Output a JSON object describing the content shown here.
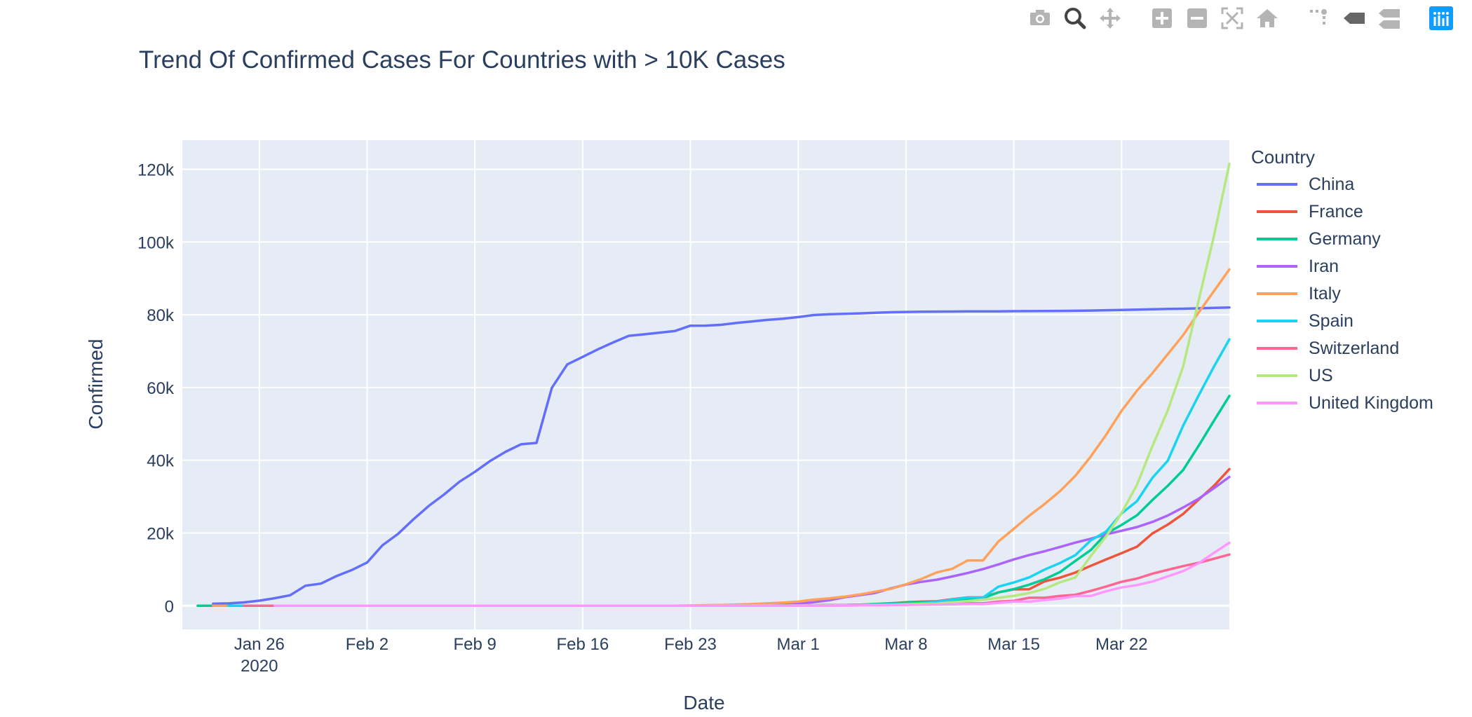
{
  "modebar": {
    "icons": [
      "camera-icon",
      "zoom-icon",
      "pan-icon",
      "zoom-in-icon",
      "zoom-out-icon",
      "autoscale-icon",
      "reset-axes-icon",
      "spike-lines-icon",
      "hover-closest-icon",
      "hover-compare-icon",
      "plotly-logo-icon"
    ]
  },
  "chart_data": {
    "type": "line",
    "title": "Trend Of Confirmed Cases For Countries with > 10K Cases",
    "xlabel": "Date",
    "ylabel": "Confirmed",
    "legend_title": "Country",
    "legend_position": "top-right",
    "grid": true,
    "x_start": "2020-01-22",
    "xlim": [
      "2020-01-21",
      "2020-03-29"
    ],
    "ylim": [
      -6500,
      128000
    ],
    "x_ticks": [
      {
        "date": "2020-01-26",
        "label": "Jan 26",
        "sublabel": "2020"
      },
      {
        "date": "2020-02-02",
        "label": "Feb 2"
      },
      {
        "date": "2020-02-09",
        "label": "Feb 9"
      },
      {
        "date": "2020-02-16",
        "label": "Feb 16"
      },
      {
        "date": "2020-02-23",
        "label": "Feb 23"
      },
      {
        "date": "2020-03-01",
        "label": "Mar 1"
      },
      {
        "date": "2020-03-08",
        "label": "Mar 8"
      },
      {
        "date": "2020-03-15",
        "label": "Mar 15"
      },
      {
        "date": "2020-03-22",
        "label": "Mar 22"
      }
    ],
    "y_ticks": [
      {
        "value": 0,
        "label": "0"
      },
      {
        "value": 20000,
        "label": "20k"
      },
      {
        "value": 40000,
        "label": "40k"
      },
      {
        "value": 60000,
        "label": "60k"
      },
      {
        "value": 80000,
        "label": "80k"
      },
      {
        "value": 100000,
        "label": "100k"
      },
      {
        "value": 120000,
        "label": "120k"
      }
    ],
    "series": [
      {
        "name": "China",
        "color": "#636efa",
        "values": [
          548,
          643,
          920,
          1406,
          2075,
          2877,
          5509,
          6087,
          8141,
          9802,
          11891,
          16630,
          19716,
          23707,
          27440,
          30587,
          34110,
          36814,
          39829,
          42354,
          44386,
          44759,
          59895,
          66358,
          68413,
          70513,
          72434,
          74211,
          74619,
          75077,
          75550,
          77001,
          77022,
          77241,
          77754,
          78166,
          78600,
          78928,
          79356,
          79932,
          80136,
          80261,
          80386,
          80537,
          80690,
          80770,
          80823,
          80860,
          80887,
          80921,
          80932,
          80945,
          80977,
          81003,
          81033,
          81058,
          81102,
          81156,
          81250,
          81305,
          81435,
          81498,
          81591,
          81661,
          81782,
          81897,
          81999
        ]
      },
      {
        "name": "France",
        "color": "#ef553b",
        "values": [
          0,
          0,
          2,
          3,
          3,
          3,
          4,
          5,
          5,
          5,
          6,
          6,
          6,
          6,
          6,
          6,
          6,
          11,
          11,
          11,
          11,
          11,
          11,
          11,
          12,
          12,
          12,
          12,
          12,
          12,
          12,
          12,
          12,
          12,
          12,
          14,
          18,
          38,
          57,
          100,
          130,
          191,
          204,
          288,
          380,
          656,
          957,
          1136,
          1219,
          1794,
          2293,
          2293,
          3681,
          4496,
          4532,
          6683,
          7715,
          9124,
          10970,
          12758,
          14463,
          16243,
          19856,
          22304,
          25233,
          29155,
          32964,
          37575
        ]
      },
      {
        "name": "Germany",
        "color": "#00cc96",
        "values": [
          0,
          0,
          0,
          0,
          0,
          1,
          4,
          4,
          4,
          5,
          8,
          10,
          12,
          12,
          12,
          12,
          13,
          13,
          14,
          14,
          16,
          16,
          16,
          16,
          16,
          16,
          16,
          16,
          16,
          16,
          16,
          16,
          16,
          16,
          16,
          16,
          16,
          18,
          26,
          48,
          79,
          130,
          159,
          196,
          262,
          482,
          670,
          799,
          1040,
          1176,
          1457,
          1908,
          2078,
          3675,
          4585,
          5795,
          7272,
          9257,
          12327,
          15320,
          19848,
          22213,
          24873,
          29056,
          32986,
          37323,
          43938,
          50871,
          57695
        ]
      },
      {
        "name": "Iran",
        "color": "#ab63fa",
        "values": [
          0,
          0,
          0,
          0,
          0,
          0,
          0,
          0,
          0,
          0,
          0,
          0,
          0,
          0,
          0,
          0,
          0,
          0,
          0,
          0,
          0,
          0,
          0,
          0,
          0,
          0,
          0,
          0,
          2,
          5,
          18,
          28,
          43,
          61,
          95,
          139,
          245,
          388,
          593,
          978,
          1501,
          2336,
          2922,
          3513,
          4747,
          5823,
          6566,
          7161,
          8042,
          9000,
          10075,
          11364,
          12729,
          13938,
          14991,
          16169,
          17361,
          18407,
          19644,
          20610,
          21638,
          23049,
          24811,
          27017,
          29406,
          32332,
          35408
        ]
      },
      {
        "name": "Italy",
        "color": "#ffa15a",
        "values": [
          0,
          0,
          0,
          0,
          0,
          0,
          0,
          0,
          0,
          2,
          2,
          2,
          2,
          2,
          2,
          2,
          3,
          3,
          3,
          3,
          3,
          3,
          3,
          3,
          3,
          3,
          3,
          3,
          3,
          3,
          20,
          62,
          155,
          229,
          322,
          453,
          655,
          888,
          1128,
          1694,
          2036,
          2502,
          3089,
          3858,
          4636,
          5883,
          7375,
          9172,
          10149,
          12462,
          12462,
          17660,
          21157,
          24747,
          27980,
          31506,
          35713,
          41035,
          47021,
          53578,
          59138,
          63927,
          69176,
          74386,
          80589,
          86498,
          92472
        ]
      },
      {
        "name": "Spain",
        "color": "#19d3f3",
        "values": [
          0,
          0,
          0,
          0,
          0,
          0,
          0,
          0,
          0,
          0,
          1,
          1,
          1,
          1,
          1,
          1,
          1,
          1,
          2,
          2,
          2,
          2,
          2,
          2,
          2,
          2,
          2,
          2,
          2,
          2,
          2,
          2,
          2,
          6,
          13,
          15,
          32,
          45,
          84,
          120,
          165,
          222,
          259,
          400,
          500,
          673,
          1073,
          1695,
          2277,
          2277,
          5232,
          6391,
          7798,
          9942,
          11748,
          13910,
          17963,
          20410,
          25374,
          28768,
          35136,
          39885,
          49515,
          57786,
          65719,
          73235
        ]
      },
      {
        "name": "Switzerland",
        "color": "#ff6692",
        "values": [
          0,
          0,
          0,
          0,
          0,
          0,
          0,
          0,
          0,
          0,
          0,
          0,
          0,
          0,
          0,
          0,
          0,
          0,
          0,
          0,
          0,
          0,
          0,
          0,
          0,
          0,
          0,
          0,
          0,
          0,
          0,
          0,
          1,
          1,
          8,
          8,
          18,
          27,
          42,
          56,
          90,
          114,
          214,
          268,
          337,
          374,
          491,
          652,
          652,
          1139,
          1359,
          2200,
          2200,
          2700,
          3028,
          4075,
          5294,
          6575,
          7474,
          8795,
          9877,
          10897,
          11811,
          12928,
          14076
        ]
      },
      {
        "name": "US",
        "color": "#b6e880",
        "values": [
          1,
          1,
          2,
          2,
          5,
          5,
          5,
          5,
          5,
          7,
          8,
          8,
          11,
          11,
          11,
          11,
          12,
          12,
          13,
          13,
          13,
          13,
          13,
          13,
          13,
          13,
          15,
          15,
          15,
          51,
          51,
          57,
          58,
          60,
          68,
          74,
          98,
          118,
          149,
          217,
          262,
          402,
          518,
          583,
          959,
          1281,
          1663,
          2179,
          2727,
          3499,
          4632,
          6421,
          7786,
          13680,
          19101,
          25493,
          33276,
          43847,
          53740,
          65778,
          83836,
          101657,
          121478
        ]
      },
      {
        "name": "United Kingdom",
        "color": "#ff97ff",
        "values": [
          0,
          0,
          0,
          0,
          0,
          0,
          0,
          0,
          0,
          2,
          2,
          2,
          2,
          2,
          2,
          2,
          3,
          3,
          3,
          8,
          8,
          9,
          9,
          9,
          9,
          9,
          9,
          9,
          9,
          13,
          13,
          13,
          15,
          20,
          23,
          36,
          40,
          51,
          85,
          115,
          163,
          206,
          273,
          321,
          382,
          456,
          460,
          798,
          1140,
          1140,
          1543,
          1950,
          2626,
          2689,
          3983,
          5018,
          5683,
          6650,
          8077,
          9529,
          11658,
          14543,
          17312
        ]
      }
    ]
  }
}
